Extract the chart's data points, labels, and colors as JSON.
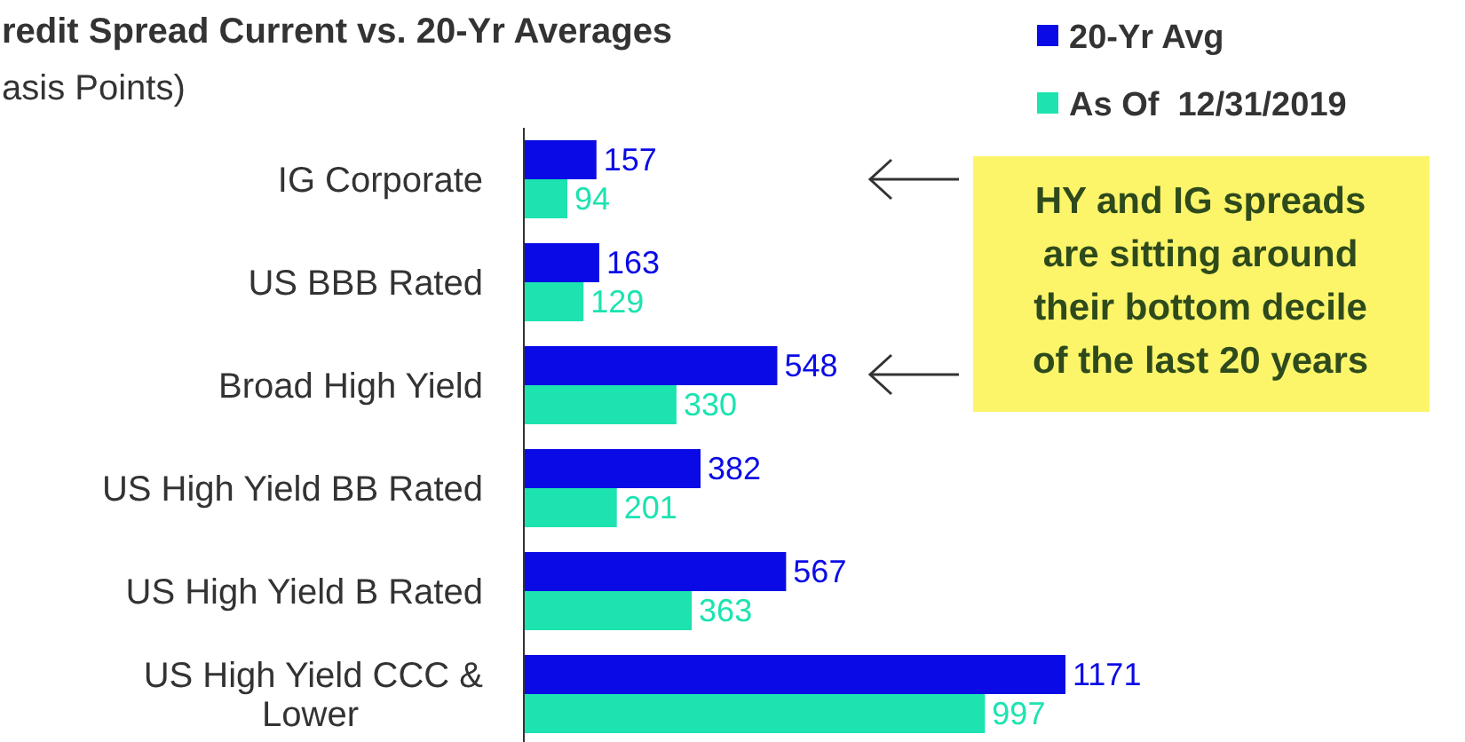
{
  "chart_data": {
    "type": "bar",
    "orientation": "horizontal",
    "title": "redit Spread Current vs. 20-Yr Averages",
    "subtitle": "asis Points)",
    "categories": [
      "IG Corporate",
      "US BBB Rated",
      "Broad High Yield",
      "US High Yield BB Rated",
      "US High Yield B Rated",
      "US High Yield CCC & Lower"
    ],
    "series": [
      {
        "name": "20-Yr Avg",
        "color": "#0a0ae6",
        "values": [
          157,
          163,
          548,
          382,
          567,
          1171
        ]
      },
      {
        "name": "As Of  12/31/2019",
        "color": "#1de3b0",
        "values": [
          94,
          129,
          330,
          201,
          363,
          997
        ]
      }
    ],
    "data_labels": true,
    "legend": "top right",
    "annotations": [
      "HY and IG spreads are sitting around their bottom decile of the last 20 years"
    ]
  }
}
